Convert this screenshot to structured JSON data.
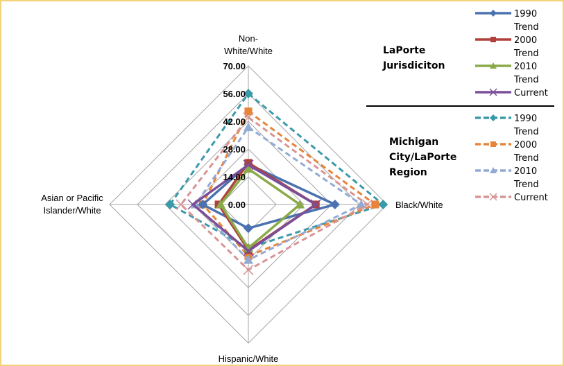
{
  "chart_data": {
    "type": "radar",
    "axes": [
      "Non-White/White",
      "Black/White",
      "Hispanic/White",
      "Asian or Pacific Islander/White"
    ],
    "rlim": [
      0,
      70
    ],
    "ticks": [
      "0.00",
      "14.00",
      "28.00",
      "42.00",
      "56.00",
      "70.00"
    ],
    "tick_values": [
      0,
      14,
      28,
      42,
      56,
      70
    ],
    "groups": [
      {
        "name": "LaPorte Jurisdiciton",
        "series": [
          {
            "name": "1990 Trend",
            "color": "#4a72b0",
            "marker": "diamond",
            "dashed": false,
            "values": [
              20.3,
              43.7,
              12,
              23
            ]
          },
          {
            "name": "2000 Trend",
            "color": "#b0403c",
            "marker": "square",
            "dashed": false,
            "values": [
              21,
              34,
              23,
              15
            ]
          },
          {
            "name": "2010 Trend",
            "color": "#8aaa4a",
            "marker": "triangle",
            "dashed": false,
            "values": [
              18,
              26,
              22,
              14
            ]
          },
          {
            "name": "Current",
            "color": "#7a4f98",
            "marker": "x",
            "dashed": false,
            "values": [
              20,
              34,
              23.5,
              28
            ]
          }
        ]
      },
      {
        "name": "Michigan City/LaPorte Region",
        "series": [
          {
            "name": "1990 Trend",
            "color": "#3a9aaa",
            "marker": "diamond",
            "dashed": true,
            "values": [
              56,
              68,
              22,
              39.5
            ]
          },
          {
            "name": "2000 Trend",
            "color": "#e8843a",
            "marker": "square",
            "dashed": true,
            "values": [
              47,
              64,
              26,
              23
            ]
          },
          {
            "name": "2010 Trend",
            "color": "#92aad4",
            "marker": "triangle",
            "dashed": true,
            "values": [
              39,
              57,
              28,
              26.6
            ]
          },
          {
            "name": "Current",
            "color": "#d89494",
            "marker": "x",
            "dashed": true,
            "values": [
              44,
              60,
              33,
              34
            ]
          }
        ]
      }
    ]
  }
}
